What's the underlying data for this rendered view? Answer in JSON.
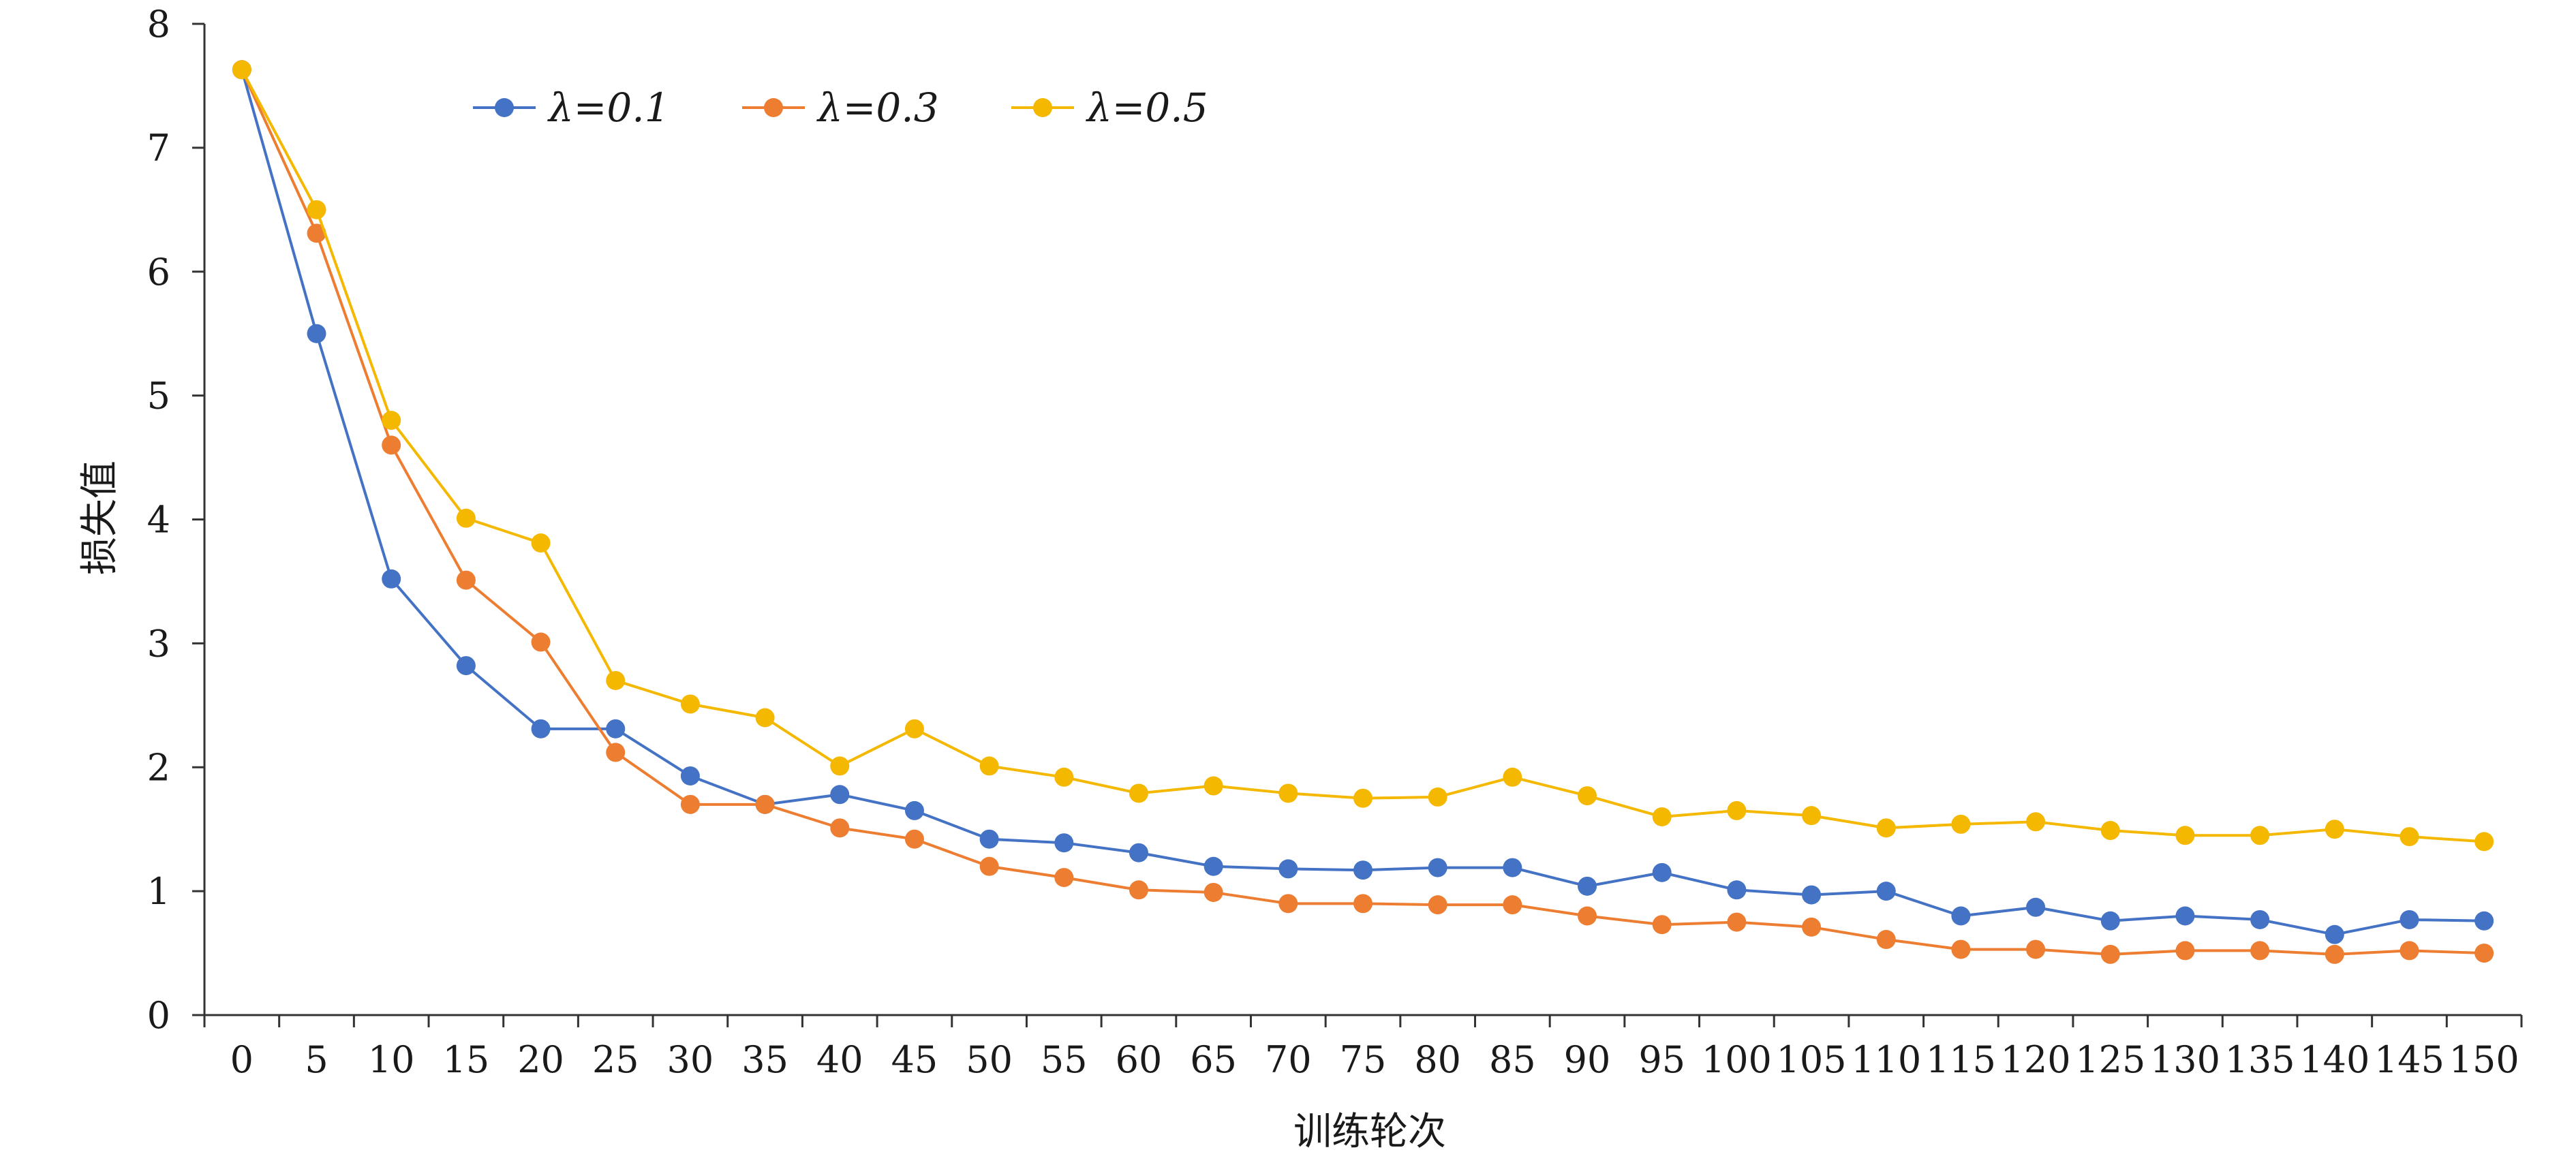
{
  "chart_data": {
    "type": "line",
    "title": "",
    "xlabel": "训练轮次",
    "ylabel": "损失值",
    "categories": [
      0,
      5,
      10,
      15,
      20,
      25,
      30,
      35,
      40,
      45,
      50,
      55,
      60,
      65,
      70,
      75,
      80,
      85,
      90,
      95,
      100,
      105,
      110,
      115,
      120,
      125,
      130,
      135,
      140,
      145,
      150
    ],
    "ylim": [
      0,
      8
    ],
    "yticks": [
      0,
      1,
      2,
      3,
      4,
      5,
      6,
      7,
      8
    ],
    "grid": false,
    "legend_position": "top-left",
    "series": [
      {
        "name": "λ=0.1",
        "color": "#4472C4",
        "values": [
          7.63,
          5.5,
          3.52,
          2.82,
          2.31,
          2.31,
          1.93,
          1.7,
          1.78,
          1.65,
          1.42,
          1.39,
          1.31,
          1.2,
          1.18,
          1.17,
          1.19,
          1.19,
          1.04,
          1.15,
          1.01,
          0.97,
          1.0,
          0.8,
          0.87,
          0.76,
          0.8,
          0.77,
          0.65,
          0.77,
          0.76
        ]
      },
      {
        "name": "λ=0.3",
        "color": "#ED7D31",
        "values": [
          7.63,
          6.31,
          4.6,
          3.51,
          3.01,
          2.12,
          1.7,
          1.7,
          1.51,
          1.42,
          1.2,
          1.11,
          1.01,
          0.99,
          0.9,
          0.9,
          0.89,
          0.89,
          0.8,
          0.73,
          0.75,
          0.71,
          0.61,
          0.53,
          0.53,
          0.49,
          0.52,
          0.52,
          0.49,
          0.52,
          0.5
        ]
      },
      {
        "name": "λ=0.5",
        "color": "#F5B800",
        "values": [
          7.63,
          6.5,
          4.8,
          4.01,
          3.81,
          2.7,
          2.51,
          2.4,
          2.01,
          2.31,
          2.01,
          1.92,
          1.79,
          1.85,
          1.79,
          1.75,
          1.76,
          1.92,
          1.77,
          1.6,
          1.65,
          1.61,
          1.51,
          1.54,
          1.56,
          1.49,
          1.45,
          1.45,
          1.5,
          1.44,
          1.4
        ]
      }
    ]
  }
}
